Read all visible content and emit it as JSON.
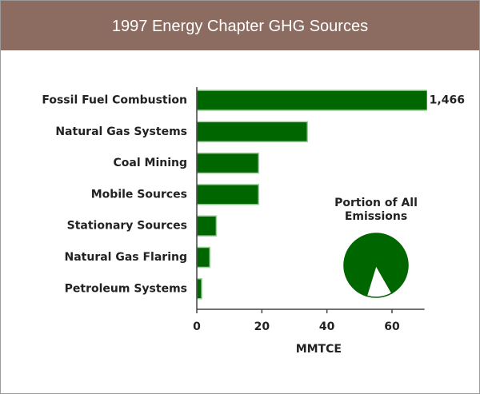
{
  "chart_data": [
    {
      "type": "bar",
      "title": "1997 Energy Chapter GHG Sources",
      "categories": [
        "Fossil Fuel Combustion",
        "Natural Gas Systems",
        "Coal Mining",
        "Mobile Sources",
        "Stationary Sources",
        "Natural Gas Flaring",
        "Petroleum Systems"
      ],
      "values": [
        1466,
        34,
        19,
        19,
        6,
        4,
        1.5
      ],
      "value_labels": [
        "1,466",
        null,
        null,
        null,
        null,
        null,
        null
      ],
      "color": "#006600",
      "xlim": [
        0,
        70
      ],
      "xticks": [
        0,
        20,
        40,
        60
      ],
      "xlabel": "MMTCE"
    },
    {
      "type": "pie",
      "title": "Portion of All Emissions",
      "values": [
        87,
        13
      ],
      "colors": [
        "#006600",
        "#ffffff"
      ]
    }
  ]
}
